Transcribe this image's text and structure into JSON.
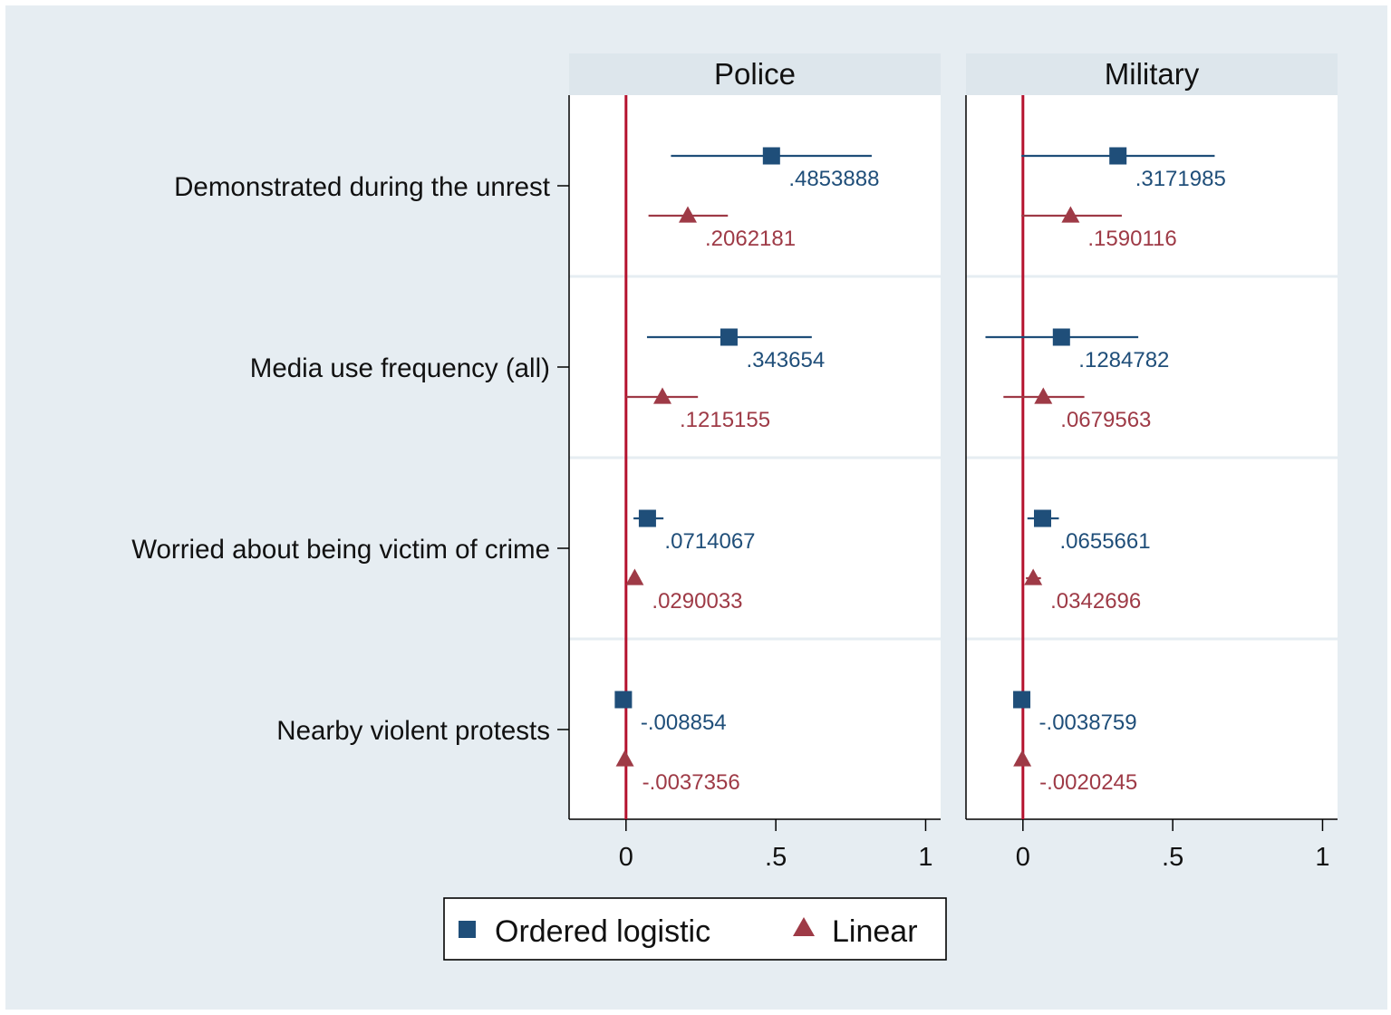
{
  "chart_data": {
    "type": "coefficient-plot",
    "panels": [
      "Police",
      "Military"
    ],
    "categories": [
      "Demonstrated during the unrest",
      "Media use frequency (all)",
      "Worried about being victim of crime",
      "Nearby violent protests"
    ],
    "x_ticks": [
      0,
      0.5,
      1
    ],
    "x_tick_labels": [
      "0",
      ".5",
      "1"
    ],
    "xlim": [
      -0.19,
      1.05
    ],
    "reference_line": 0,
    "series": [
      {
        "name": "Ordered logistic",
        "marker": "square",
        "color": "#1f4e79",
        "panels": {
          "Police": [
            {
              "estimate": 0.4853888,
              "label": ".4853888",
              "ci": [
                0.15,
                0.82
              ]
            },
            {
              "estimate": 0.343654,
              "label": ".343654",
              "ci": [
                0.07,
                0.62
              ]
            },
            {
              "estimate": 0.0714067,
              "label": ".0714067",
              "ci": [
                0.025,
                0.125
              ]
            },
            {
              "estimate": -0.008854,
              "label": "-.008854",
              "ci": [
                -0.015,
                0.0
              ]
            }
          ],
          "Military": [
            {
              "estimate": 0.3171985,
              "label": ".3171985",
              "ci": [
                -0.005,
                0.64
              ]
            },
            {
              "estimate": 0.1284782,
              "label": ".1284782",
              "ci": [
                -0.125,
                0.385
              ]
            },
            {
              "estimate": 0.0655661,
              "label": ".0655661",
              "ci": [
                0.015,
                0.12
              ]
            },
            {
              "estimate": -0.0038759,
              "label": "-.0038759",
              "ci": [
                -0.01,
                0.005
              ]
            }
          ]
        }
      },
      {
        "name": "Linear",
        "marker": "triangle",
        "color": "#9e3a46",
        "panels": {
          "Police": [
            {
              "estimate": 0.2062181,
              "label": ".2062181",
              "ci": [
                0.075,
                0.34
              ]
            },
            {
              "estimate": 0.1215155,
              "label": ".1215155",
              "ci": [
                0.0,
                0.24
              ]
            },
            {
              "estimate": 0.0290033,
              "label": ".0290033",
              "ci": [
                0.012,
                0.045
              ]
            },
            {
              "estimate": -0.0037356,
              "label": "-.0037356",
              "ci": [
                -0.01,
                0.003
              ]
            }
          ],
          "Military": [
            {
              "estimate": 0.1590116,
              "label": ".1590116",
              "ci": [
                -0.005,
                0.33
              ]
            },
            {
              "estimate": 0.0679563,
              "label": ".0679563",
              "ci": [
                -0.065,
                0.205
              ]
            },
            {
              "estimate": 0.0342696,
              "label": ".0342696",
              "ci": [
                0.01,
                0.06
              ]
            },
            {
              "estimate": -0.0020245,
              "label": "-.0020245",
              "ci": [
                -0.008,
                0.004
              ]
            }
          ]
        }
      }
    ],
    "legend": {
      "position": "bottom",
      "items": [
        "Ordered logistic",
        "Linear"
      ]
    },
    "reference_line_color": "#b5122e",
    "background_color": "#e6edf2",
    "panel_header_color": "#dde6ec"
  }
}
